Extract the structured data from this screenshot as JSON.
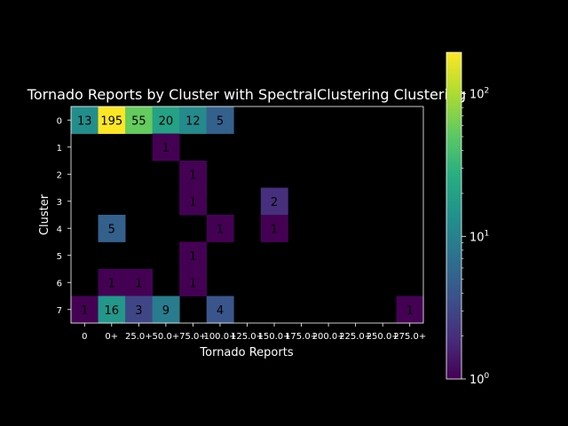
{
  "chart_data": {
    "type": "heatmap",
    "title": "Tornado Reports by Cluster with SpectralClustering Clustering",
    "xlabel": "Tornado Reports",
    "ylabel": "Cluster",
    "x_categories": [
      "0",
      "0+",
      "25.0+",
      "50.0+",
      "75.0+",
      "100.0+",
      "125.0+",
      "150.0+",
      "175.0+",
      "200.0+",
      "225.0+",
      "250.0+",
      "275.0+"
    ],
    "y_categories": [
      "0",
      "1",
      "2",
      "3",
      "4",
      "5",
      "6",
      "7"
    ],
    "values": [
      [
        13,
        195,
        55,
        20,
        12,
        5,
        0,
        0,
        0,
        0,
        0,
        0,
        0
      ],
      [
        0,
        0,
        0,
        1,
        0,
        0,
        0,
        0,
        0,
        0,
        0,
        0,
        0
      ],
      [
        0,
        0,
        0,
        0,
        1,
        0,
        0,
        0,
        0,
        0,
        0,
        0,
        0
      ],
      [
        0,
        0,
        0,
        0,
        1,
        0,
        0,
        2,
        0,
        0,
        0,
        0,
        0
      ],
      [
        0,
        5,
        0,
        0,
        0,
        1,
        0,
        1,
        0,
        0,
        0,
        0,
        0
      ],
      [
        0,
        0,
        0,
        0,
        1,
        0,
        0,
        0,
        0,
        0,
        0,
        0,
        0
      ],
      [
        0,
        1,
        1,
        0,
        1,
        0,
        0,
        0,
        0,
        0,
        0,
        0,
        0
      ],
      [
        1,
        16,
        3,
        9,
        0,
        4,
        0,
        0,
        0,
        0,
        0,
        0,
        1
      ]
    ],
    "colorscale": "viridis",
    "color_scale_type": "log",
    "colorbar_range": [
      1,
      195
    ],
    "colorbar_ticks": [
      {
        "value": 1,
        "base": "10",
        "exp": "0"
      },
      {
        "value": 10,
        "base": "10",
        "exp": "1"
      },
      {
        "value": 100,
        "base": "10",
        "exp": "2"
      }
    ],
    "background": "#000000",
    "zero_color": "#000000",
    "grid": false
  }
}
